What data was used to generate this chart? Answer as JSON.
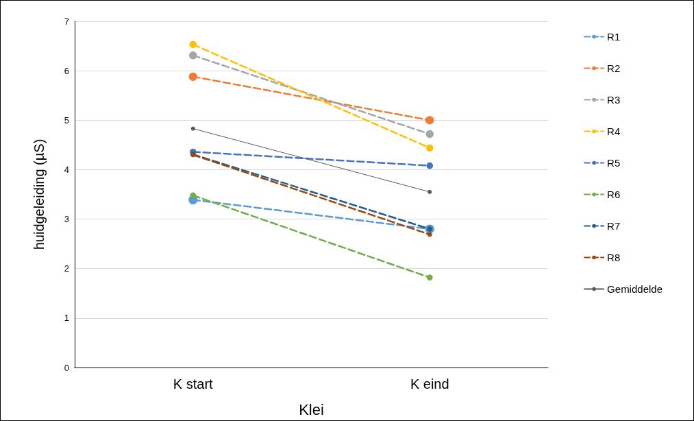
{
  "chart_data": {
    "type": "line",
    "xlabel": "Klei",
    "ylabel": "huidgeleiding (µS)",
    "categories": [
      "K start",
      "K eind"
    ],
    "ylim": [
      0,
      7
    ],
    "yticks": [
      0,
      1,
      2,
      3,
      4,
      5,
      6,
      7
    ],
    "grid": "y",
    "legend": "right",
    "marker": "circle",
    "series": [
      {
        "name": "R1",
        "color": "#5b9bd5",
        "line_style": "dashed",
        "values": [
          3.39,
          2.8
        ]
      },
      {
        "name": "R2",
        "color": "#ed7d31",
        "line_style": "dashed",
        "values": [
          5.88,
          5.0
        ]
      },
      {
        "name": "R3",
        "color": "#a5a5a5",
        "line_style": "dashed",
        "values": [
          6.31,
          4.72
        ]
      },
      {
        "name": "R4",
        "color": "#ffc000",
        "line_style": "dashed",
        "values": [
          6.53,
          4.44
        ]
      },
      {
        "name": "R5",
        "color": "#4472c4",
        "line_style": "dashed",
        "values": [
          4.36,
          4.08
        ]
      },
      {
        "name": "R6",
        "color": "#70ad47",
        "line_style": "dashed",
        "values": [
          3.48,
          1.82
        ]
      },
      {
        "name": "R7",
        "color": "#255e91",
        "line_style": "dashed",
        "values": [
          4.31,
          2.8
        ]
      },
      {
        "name": "R8",
        "color": "#9e480e",
        "line_style": "dashed",
        "values": [
          4.3,
          2.69
        ]
      },
      {
        "name": "Gemiddelde",
        "color": "#595959",
        "line_style": "solid",
        "values": [
          4.83,
          3.55
        ]
      }
    ]
  }
}
